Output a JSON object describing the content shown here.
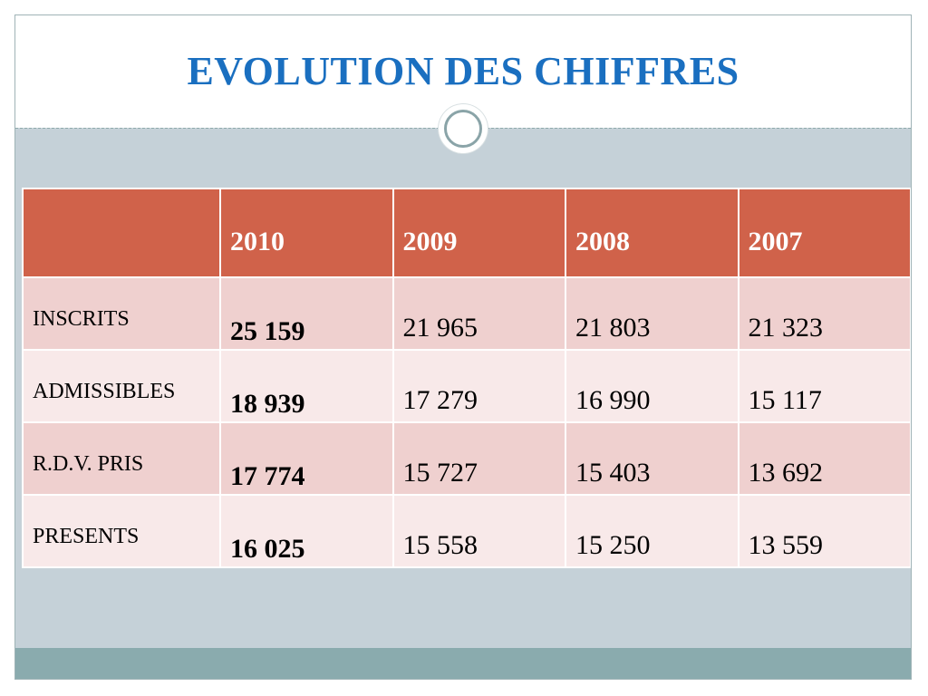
{
  "slide": {
    "title": "EVOLUTION DES CHIFFRES"
  },
  "table": {
    "headers": [
      "",
      "2010",
      "2009",
      "2008",
      "2007"
    ],
    "rows": [
      {
        "label": "INSCRITS",
        "values": [
          "25 159",
          "21 965",
          "21 803",
          "21 323"
        ]
      },
      {
        "label": "ADMISSIBLES",
        "values": [
          "18 939",
          "17 279",
          "16 990",
          "15 117"
        ]
      },
      {
        "label": "R.D.V. PRIS",
        "values": [
          "17 774",
          "15 727",
          "15 403",
          "13 692"
        ]
      },
      {
        "label": "PRESENTS",
        "values": [
          "16 025",
          "15 558",
          "15 250",
          "13 559"
        ]
      }
    ]
  },
  "colors": {
    "title": "#1a6fc0",
    "header": "#d0624a",
    "row_odd": "#efd0cf",
    "row_even": "#f8e9e9",
    "background": "#c5d1d8",
    "accent": "#8aabae"
  }
}
